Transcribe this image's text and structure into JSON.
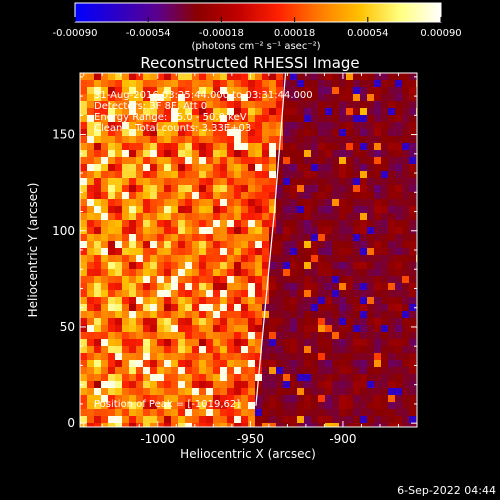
{
  "colorbar": {
    "tick_labels": [
      "-0.00090",
      "-0.00054",
      "-0.00018",
      "0.00018",
      "0.00054",
      "0.00090"
    ],
    "range": [
      -0.0009,
      0.0009
    ],
    "units_label": "(photons cm⁻² s⁻¹ asec⁻²)",
    "colormap": [
      "#0000ff",
      "#2a00c8",
      "#5a0090",
      "#8a0000",
      "#c00000",
      "#ff2000",
      "#ff7a00",
      "#ffc000",
      "#ffff80",
      "#ffffff"
    ]
  },
  "plot": {
    "title": "Reconstructed RHESSI Image",
    "annotations": {
      "time_range": "31-Aug-2016 03:25:44.000 to 03:31:44.000",
      "detectors": "Detectors: 3F 8F, Att 0",
      "energy_range": "Energy Range: 25.0 - 50.0 keV",
      "algorithm_counts": "Clean    Total counts: 3.33E+03",
      "peak_position": "Position of Peak = [-1019,62]"
    },
    "footer_timestamp": "6-Sep-2022 04:44"
  },
  "chart_data": {
    "type": "heatmap",
    "title": "Reconstructed RHESSI Image",
    "xlabel": "Heliocentric X (arcsec)",
    "ylabel": "Heliocentric Y (arcsec)",
    "xlim": [
      -1042,
      -860
    ],
    "ylim": [
      -2,
      182
    ],
    "x_ticks": [
      -1000,
      -950,
      -900
    ],
    "x_tick_labels": [
      "-1000",
      "-950",
      "-900"
    ],
    "y_ticks": [
      0,
      50,
      100,
      150
    ],
    "y_tick_labels": [
      "0",
      "50",
      "100",
      "150"
    ],
    "z_range": [
      -0.0009,
      0.0009
    ],
    "z_units": "photons cm-2 s-1 asec-2",
    "peak": [
      -1019,
      62
    ],
    "limb": [
      [
        -947,
        9
      ],
      [
        -942,
        60
      ],
      [
        -937,
        110
      ],
      [
        -931,
        182
      ]
    ],
    "colormap_name": "red-temperature"
  }
}
